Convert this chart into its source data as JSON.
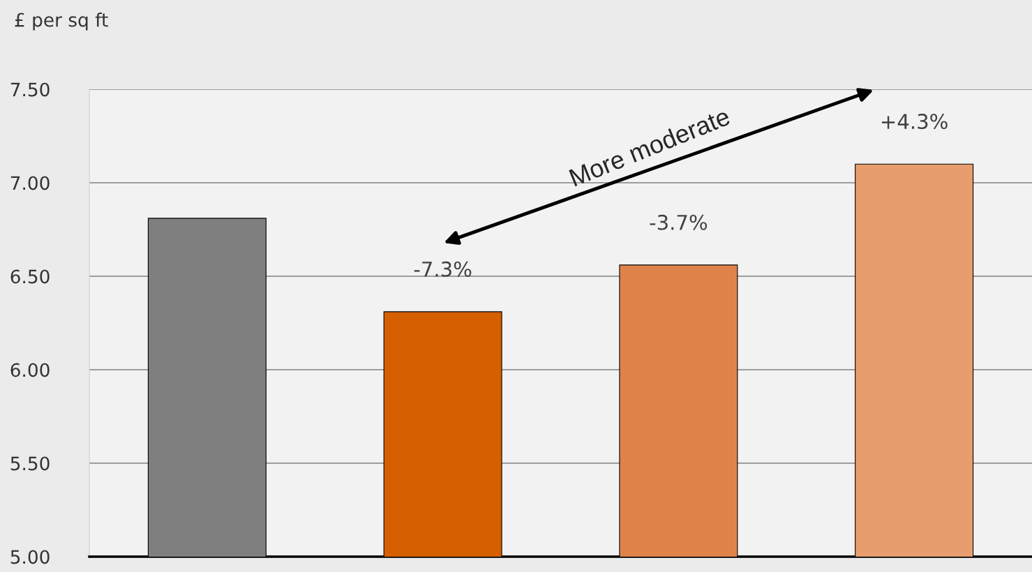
{
  "chart_data": {
    "type": "bar",
    "ylabel": "£ per sq ft",
    "categories": [
      null,
      null,
      null,
      null
    ],
    "values": [
      6.81,
      6.31,
      6.56,
      7.1
    ],
    "colors": [
      "#7f7f7f",
      "#d65f00",
      "#e0834a",
      "#e89d6e"
    ],
    "ylim": [
      5.0,
      7.5
    ],
    "yticks": [
      {
        "value": 5.0,
        "label": "5.00"
      },
      {
        "value": 5.5,
        "label": "5.50"
      },
      {
        "value": 6.0,
        "label": "6.00"
      },
      {
        "value": 6.5,
        "label": "6.50"
      },
      {
        "value": 7.0,
        "label": "7.00"
      },
      {
        "value": 7.5,
        "label": "7.50"
      }
    ],
    "grid": "y",
    "annotations": [
      "More moderate",
      {
        "text": "-7.3%",
        "y": 6.31
      },
      {
        "text": "-3.7%",
        "y": 6.56
      },
      {
        "text": "+4.3%",
        "y": 7.1
      }
    ]
  }
}
